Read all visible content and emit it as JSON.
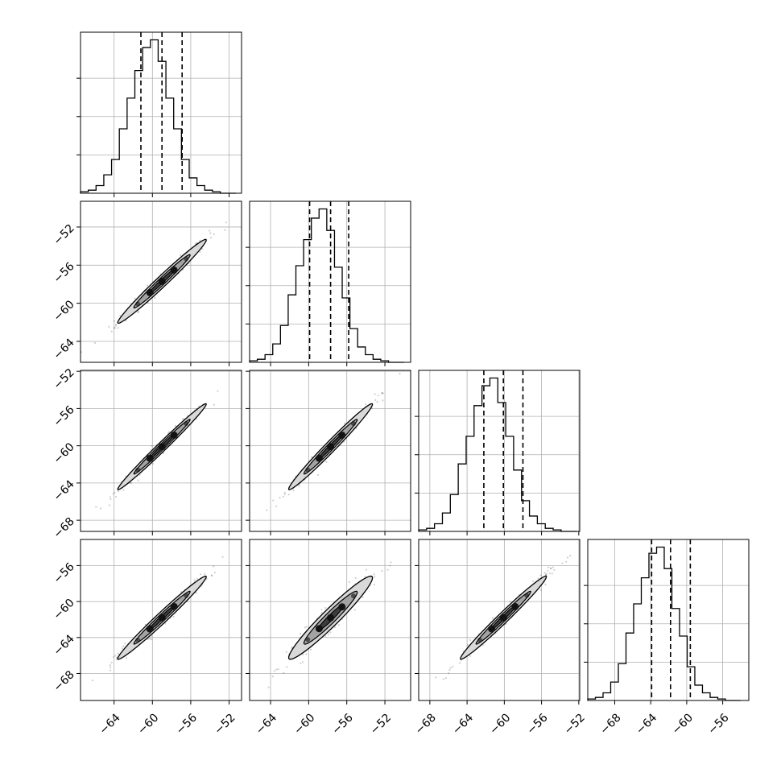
{
  "figure": {
    "type": "corner-plot",
    "dimensions": 4
  },
  "style": {
    "line_color": "#000000",
    "grid_color": "#b0b0b0",
    "scatter_color": "#555555",
    "contour_fill_outer": "#d9d9d9",
    "contour_fill_mid": "#8c8c8c",
    "contour_fill_inner": "#2b2b2b"
  },
  "chart_data": {
    "type": "corner",
    "grid": true,
    "parameters": [
      {
        "index": 0,
        "range": [
          -67.5,
          -50.7
        ],
        "ticks": [
          -64,
          -60,
          -56,
          -52
        ],
        "quantiles": [
          -61.2,
          -59.0,
          -56.9
        ],
        "mean": -59.0,
        "sigma": 2.1
      },
      {
        "index": 1,
        "range": [
          -66.2,
          -49.3
        ],
        "ticks": [
          -64,
          -60,
          -56,
          -52
        ],
        "quantiles": [
          -59.9,
          -57.7,
          -55.8
        ],
        "mean": -57.7,
        "sigma": 2.0
      },
      {
        "index": 2,
        "range": [
          -69.2,
          -51.9
        ],
        "ticks": [
          -68,
          -64,
          -60,
          -56,
          -52
        ],
        "quantiles": [
          -62.2,
          -60.1,
          -58.0
        ],
        "mean": -60.1,
        "sigma": 2.1
      },
      {
        "index": 3,
        "range": [
          -71.0,
          -53.1
        ],
        "ticks": [
          -68,
          -64,
          -60,
          -56
        ],
        "quantiles": [
          -63.9,
          -61.8,
          -59.6
        ],
        "mean": -61.8,
        "sigma": 2.1
      }
    ],
    "histograms": [
      {
        "param": 0,
        "bins_edges": [
          -67.5,
          -51.3
        ],
        "counts": [
          1,
          2,
          5,
          12,
          22,
          42,
          62,
          80,
          95,
          100,
          86,
          62,
          42,
          22,
          10,
          5,
          2,
          1,
          0,
          0
        ]
      },
      {
        "param": 1,
        "bins_edges": [
          -66.2,
          -50.0
        ],
        "counts": [
          1,
          2,
          5,
          12,
          24,
          44,
          63,
          80,
          94,
          100,
          86,
          62,
          42,
          22,
          10,
          5,
          2,
          1,
          0,
          0
        ]
      },
      {
        "param": 2,
        "bins_edges": [
          -69.2,
          -52.2
        ],
        "counts": [
          1,
          2,
          5,
          12,
          24,
          44,
          62,
          82,
          95,
          100,
          84,
          62,
          40,
          20,
          10,
          5,
          2,
          1,
          0,
          0
        ]
      },
      {
        "param": 3,
        "bins_edges": [
          -71.0,
          -54.0
        ],
        "counts": [
          1,
          2,
          5,
          12,
          24,
          44,
          63,
          80,
          96,
          100,
          86,
          60,
          42,
          22,
          10,
          5,
          2,
          1,
          0,
          0
        ]
      }
    ],
    "pairs": [
      {
        "x": 0,
        "y": 1,
        "correlation": 0.985
      },
      {
        "x": 0,
        "y": 2,
        "correlation": 0.99
      },
      {
        "x": 1,
        "y": 2,
        "correlation": 0.985
      },
      {
        "x": 0,
        "y": 3,
        "correlation": 0.985
      },
      {
        "x": 1,
        "y": 3,
        "correlation": 0.96
      },
      {
        "x": 2,
        "y": 3,
        "correlation": 0.985
      }
    ]
  }
}
